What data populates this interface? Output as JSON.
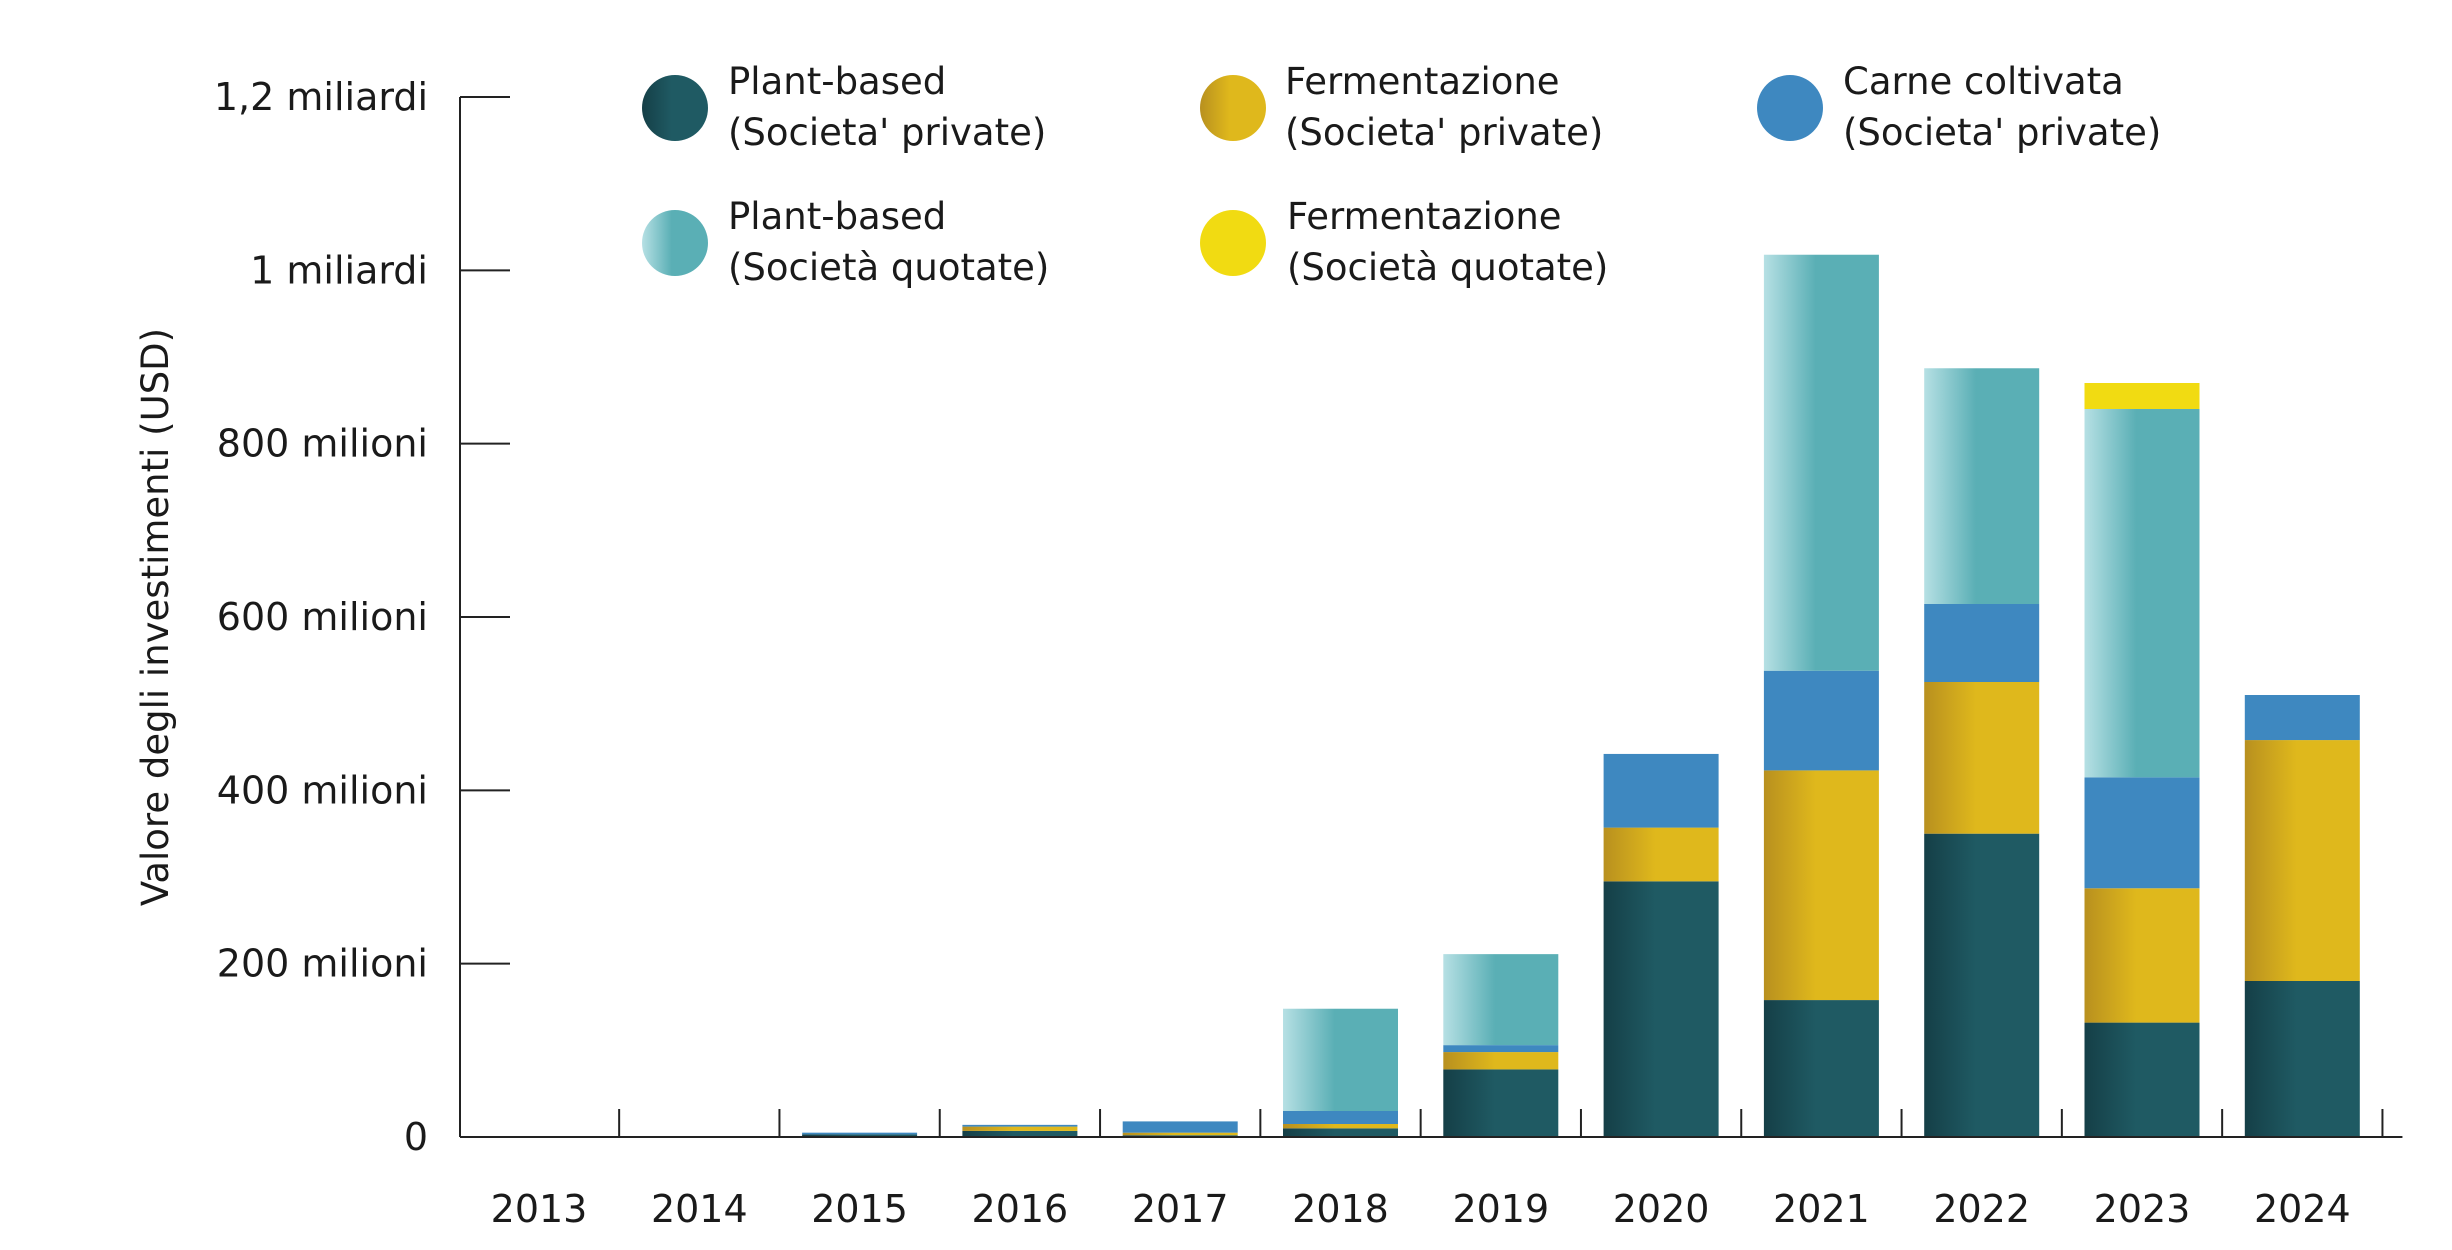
{
  "chart_data": {
    "type": "bar",
    "stacked": true,
    "ylabel": "Valore degli investimenti (USD)",
    "xlabel": "",
    "ylim": [
      0,
      1200
    ],
    "y_unit": "milioni USD",
    "y_ticks": [
      {
        "value": 0,
        "label": "0"
      },
      {
        "value": 200,
        "label": "200 milioni"
      },
      {
        "value": 400,
        "label": "400 milioni"
      },
      {
        "value": 600,
        "label": "600 milioni"
      },
      {
        "value": 800,
        "label": "800 milioni"
      },
      {
        "value": 1000,
        "label": "1 miliardi"
      },
      {
        "value": 1200,
        "label": "1,2 miliardi"
      }
    ],
    "categories": [
      "2013",
      "2014",
      "2015",
      "2016",
      "2017",
      "2018",
      "2019",
      "2020",
      "2021",
      "2022",
      "2023",
      "2024"
    ],
    "legend_position": "top",
    "series": [
      {
        "name_line1": "Plant-based",
        "name_line2": "(Societa' private)",
        "color": "#1f5a63",
        "color_light": "#153f47",
        "values": [
          0,
          0,
          3,
          7,
          2,
          10,
          78,
          295,
          158,
          350,
          132,
          180
        ]
      },
      {
        "name_line1": "Fermentazione",
        "name_line2": "(Societa' private)",
        "color": "#dfb81c",
        "color_light": "#b8901f",
        "values": [
          0,
          0,
          0,
          5,
          3,
          5,
          20,
          62,
          265,
          175,
          155,
          278
        ]
      },
      {
        "name_line1": "Carne coltivata",
        "name_line2": "(Societa' private)",
        "color": "#3e88c0",
        "color_light": "#3e88c0",
        "values": [
          0,
          0,
          2,
          2,
          13,
          15,
          8,
          85,
          115,
          90,
          128,
          52
        ]
      },
      {
        "name_line1": "Plant-based",
        "name_line2": "(Società quotate)",
        "color": "#5aafb5",
        "color_light": "#b6e0e4",
        "values": [
          0,
          0,
          0,
          0,
          0,
          118,
          105,
          0,
          480,
          272,
          425,
          0
        ]
      },
      {
        "name_line1": "Fermentazione",
        "name_line2": "(Società quotate)",
        "color": "#f1db12",
        "color_light": "#f1db12",
        "values": [
          0,
          0,
          0,
          0,
          0,
          0,
          0,
          0,
          0,
          0,
          30,
          0
        ]
      }
    ]
  }
}
